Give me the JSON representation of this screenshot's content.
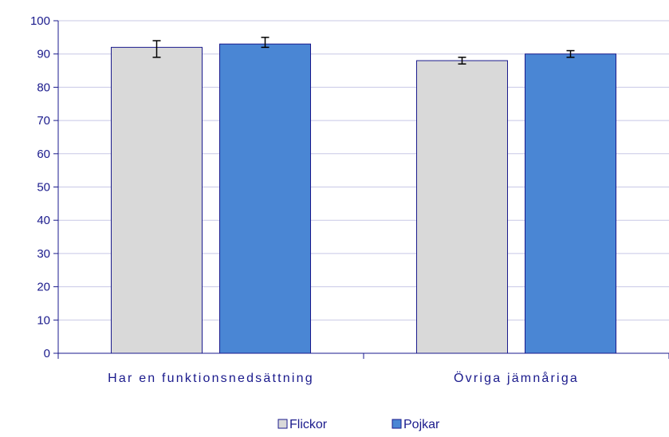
{
  "chart_data": {
    "type": "bar",
    "categories": [
      "Har en funktionsnedsättning",
      "Övriga jämnåriga"
    ],
    "series": [
      {
        "name": "Flickor",
        "values": [
          92,
          88
        ],
        "error_low": [
          89,
          87
        ],
        "error_high": [
          94,
          89
        ],
        "color": "#d9d9d9"
      },
      {
        "name": "Pojkar",
        "values": [
          93,
          90
        ],
        "error_low": [
          92,
          89
        ],
        "error_high": [
          95,
          91
        ],
        "color": "#4a86d4"
      }
    ],
    "ylim": [
      0,
      100
    ],
    "yticks": [
      0,
      10,
      20,
      30,
      40,
      50,
      60,
      70,
      80,
      90,
      100
    ],
    "grid": true,
    "legend_position": "bottom",
    "title": "",
    "xlabel": "",
    "ylabel": ""
  },
  "colors": {
    "text": "#1a1a8c",
    "grid": "#c8c8e6",
    "bar_border": "#1a1a8c",
    "axis": "#1a1a8c"
  }
}
